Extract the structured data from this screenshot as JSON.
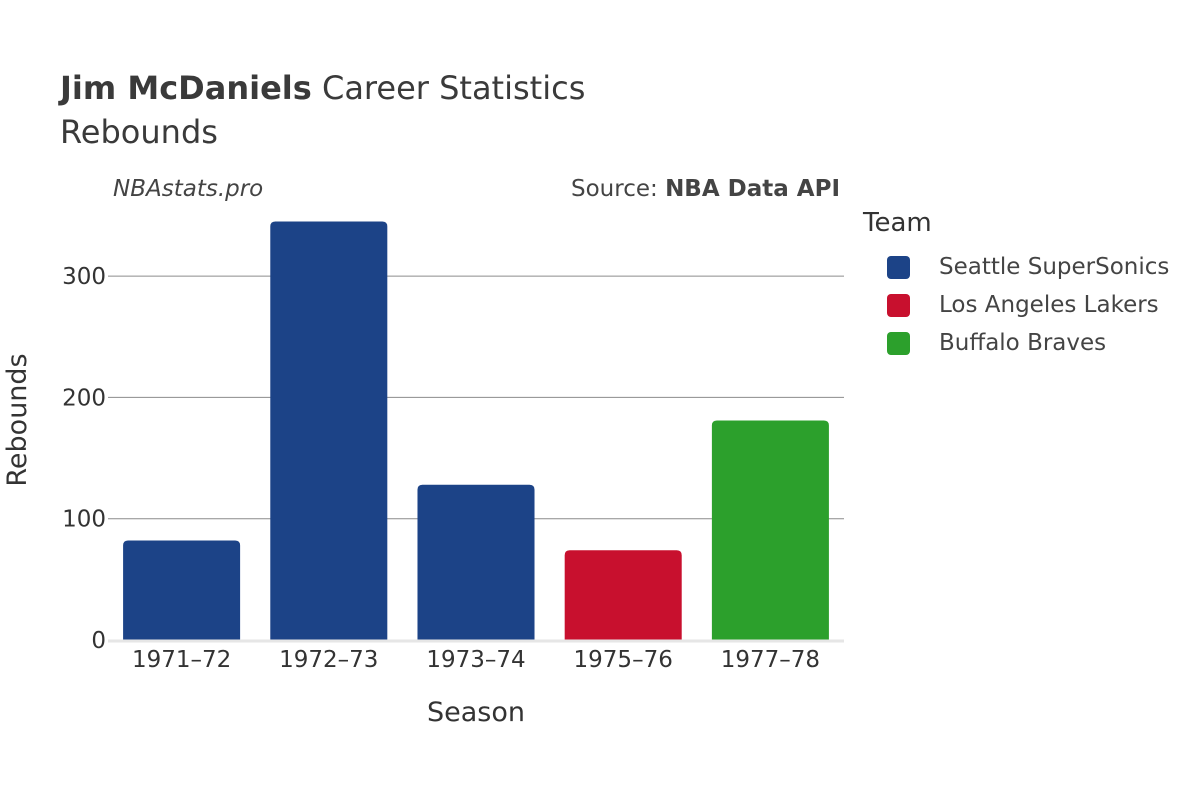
{
  "header": {
    "title_name": "Jim McDaniels",
    "title_rest": " Career Statistics",
    "subtitle": "Rebounds"
  },
  "watermark": "NBAstats.pro",
  "source": {
    "prefix": "Source: ",
    "name": "NBA Data API"
  },
  "legend": {
    "title": "Team",
    "items": [
      {
        "label": "Seattle SuperSonics",
        "color": "#1c4387"
      },
      {
        "label": "Los Angeles Lakers",
        "color": "#c8102e"
      },
      {
        "label": "Buffalo Braves",
        "color": "#2ca02c"
      }
    ]
  },
  "chart_data": {
    "type": "bar",
    "title": "Jim McDaniels Career Statistics",
    "subtitle": "Rebounds",
    "xlabel": "Season",
    "ylabel": "Rebounds",
    "categories": [
      "1971–72",
      "1972–73",
      "1973–74",
      "1975–76",
      "1977–78"
    ],
    "values": [
      82,
      345,
      128,
      74,
      181
    ],
    "teams": [
      "Seattle SuperSonics",
      "Seattle SuperSonics",
      "Seattle SuperSonics",
      "Los Angeles Lakers",
      "Buffalo Braves"
    ],
    "colors": [
      "#1c4387",
      "#1c4387",
      "#1c4387",
      "#c8102e",
      "#2ca02c"
    ],
    "ylim": [
      0,
      360
    ],
    "yticks": [
      0,
      100,
      200,
      300
    ],
    "grid": true,
    "legend_position": "right"
  }
}
